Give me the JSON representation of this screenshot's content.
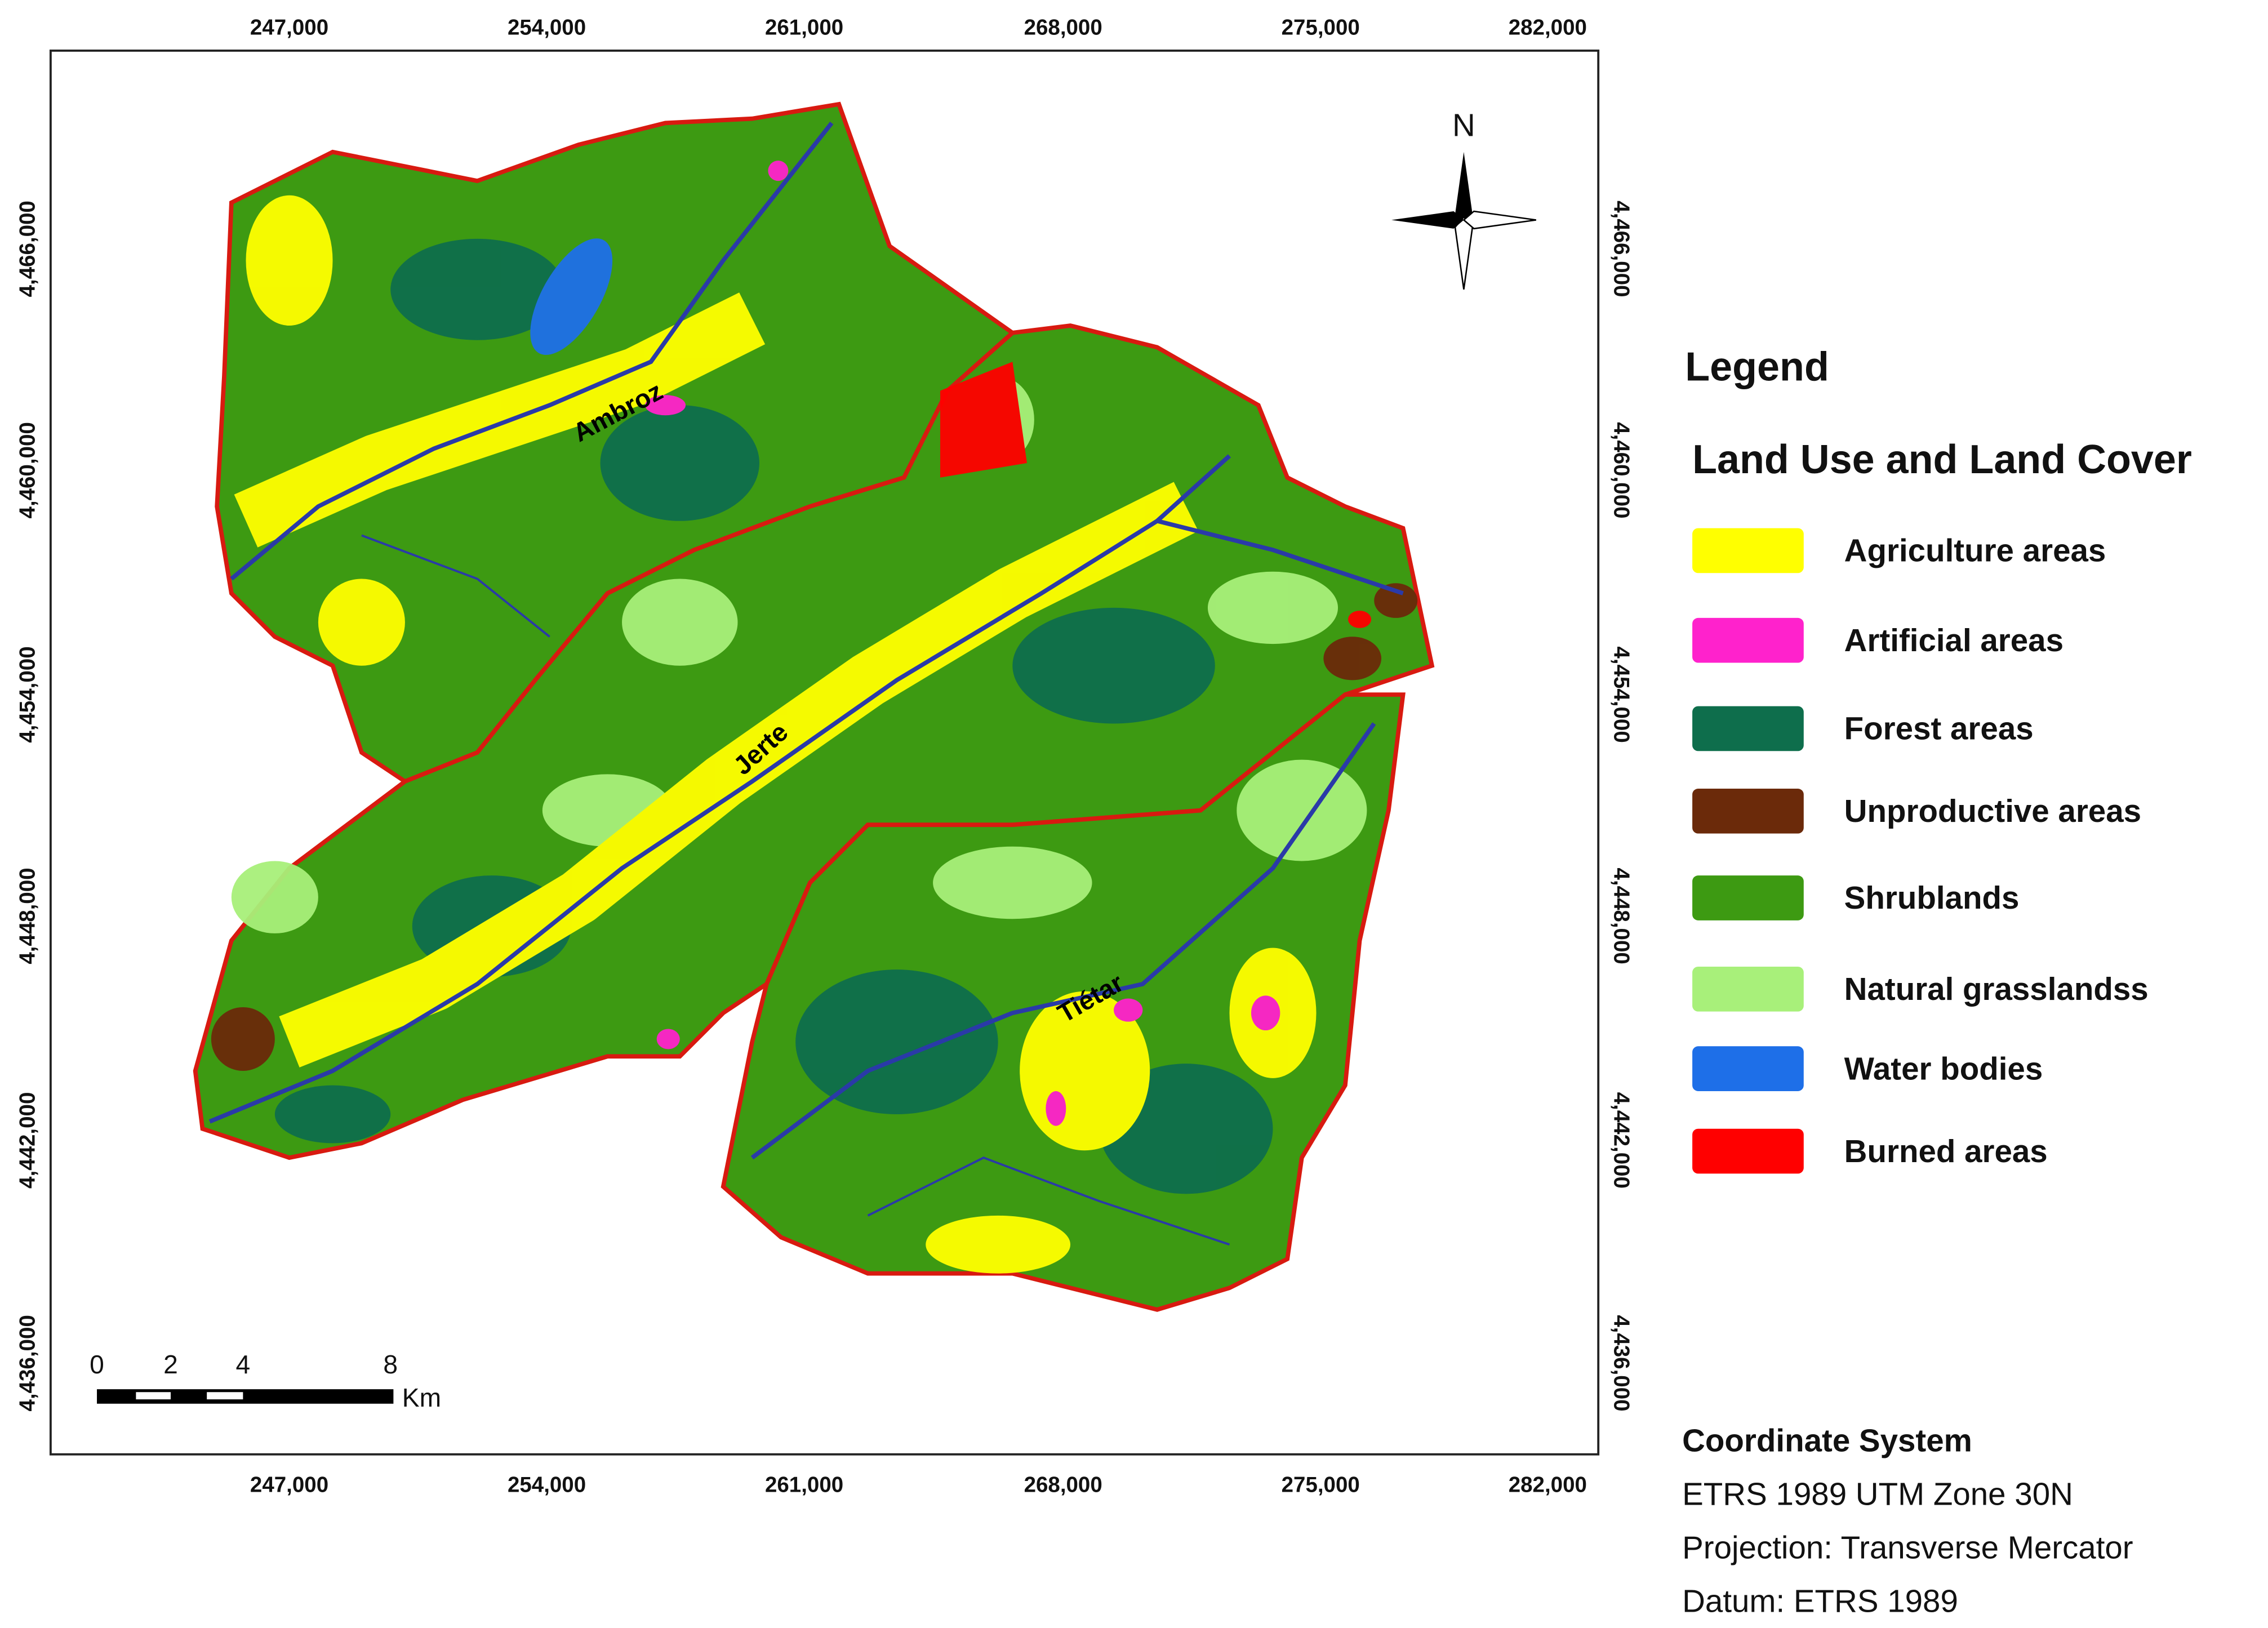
{
  "map": {
    "top_ticks": [
      "247,000",
      "254,000",
      "261,000",
      "268,000",
      "275,000",
      "282,000"
    ],
    "bottom_ticks": [
      "247,000",
      "254,000",
      "261,000",
      "268,000",
      "275,000",
      "282,000"
    ],
    "left_ticks": [
      "4,466,000",
      "4,460,000",
      "4,454,000",
      "4,448,000",
      "4,442,000",
      "4,436,000"
    ],
    "right_ticks": [
      "4,466,000",
      "4,460,000",
      "4,454,000",
      "4,448,000",
      "4,442,000",
      "4,436,000"
    ],
    "north": "N",
    "rivers": [
      "Ambroz",
      "Jerte",
      "Tiétar"
    ],
    "scale": {
      "labels": [
        "0",
        "2",
        "4",
        "8"
      ],
      "unit": "Km"
    }
  },
  "legend": {
    "title": "Legend",
    "subtitle": "Land Use and Land Cover",
    "items": [
      {
        "label": "Agriculture areas",
        "color": "#ffff00"
      },
      {
        "label": "Artificial areas",
        "color": "#ff22cc"
      },
      {
        "label": "Forest areas",
        "color": "#0e6e4c"
      },
      {
        "label": "Unproductive areas",
        "color": "#6b2a0a"
      },
      {
        "label": "Shrublands",
        "color": "#3d9a12"
      },
      {
        "label": "Natural grasslandss",
        "color": "#a8f07a"
      },
      {
        "label": "Water  bodies",
        "color": "#1e6fe8"
      },
      {
        "label": "Burned areas",
        "color": "#ff0000"
      }
    ]
  },
  "coordinate_system": {
    "title": "Coordinate System",
    "lines": [
      "ETRS 1989 UTM Zone 30N",
      "Projection: Transverse Mercator",
      "Datum: ETRS 1989"
    ]
  }
}
